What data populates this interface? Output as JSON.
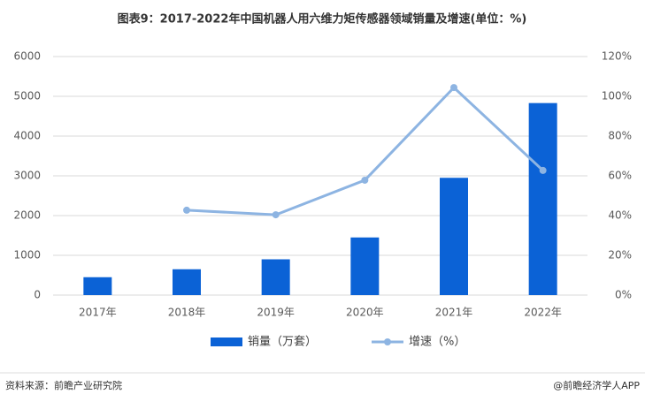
{
  "chart_data": {
    "type": "bar-line",
    "title": "图表9：2017-2022年中国机器人用六维力矩传感器领域销量及增速(单位：%)",
    "categories": [
      "2017年",
      "2018年",
      "2019年",
      "2020年",
      "2021年",
      "2022年"
    ],
    "series": [
      {
        "name": "销量（万套）",
        "type": "bar",
        "color": "#0b62d6",
        "values": [
          450,
          650,
          900,
          1450,
          2950,
          4830
        ]
      },
      {
        "name": "增速（%）",
        "type": "line",
        "axis": "y2",
        "color": "#8db4e2",
        "values": [
          null,
          42.7,
          40.4,
          57.8,
          104.4,
          62.7
        ]
      }
    ],
    "ylim": [
      0,
      6000
    ],
    "yticks": [
      0,
      1000,
      2000,
      3000,
      4000,
      5000,
      6000
    ],
    "y2lim": [
      0,
      120
    ],
    "y2ticks": [
      {
        "value": 0,
        "label": "0%"
      },
      {
        "value": 20,
        "label": "20%"
      },
      {
        "value": 40,
        "label": "40%"
      },
      {
        "value": 60,
        "label": "60%"
      },
      {
        "value": 80,
        "label": "80%"
      },
      {
        "value": 100,
        "label": "100%"
      },
      {
        "value": 120,
        "label": "120%"
      }
    ],
    "grid": true,
    "legend": "bottom",
    "source": "资料来源：前瞻产业研究院",
    "credit": "@前瞻经济学人APP"
  }
}
